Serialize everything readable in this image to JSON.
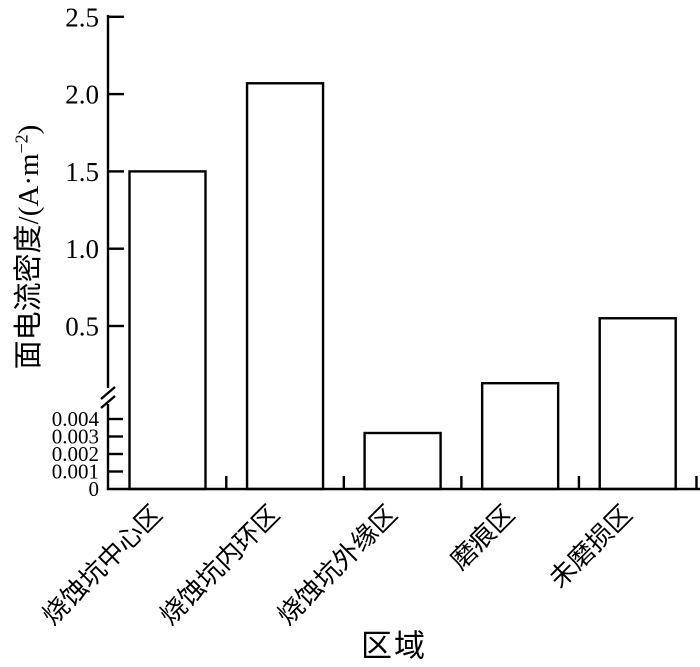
{
  "chart_data": {
    "type": "bar",
    "title": "",
    "xlabel": "区域",
    "ylabel": "面电流密度/(A·m⁻²)",
    "ylabel_parts": {
      "prefix": "面电流密度/(A·m",
      "superscript": "−2",
      "suffix": ")"
    },
    "categories": [
      "烧蚀坑中心区",
      "烧蚀坑内环区",
      "烧蚀坑外缘区",
      "磨痕区",
      "未磨损区"
    ],
    "values": [
      1.5,
      2.07,
      0.0032,
      0.13,
      0.55
    ],
    "ylim": [
      0,
      2.5
    ],
    "axis_break": {
      "between": [
        0.004,
        0.5
      ],
      "style": "double-slash"
    },
    "yaxis": {
      "upper_ticks": [
        {
          "value": 0.5,
          "label": "0.5"
        },
        {
          "value": 1.0,
          "label": "1.0"
        },
        {
          "value": 1.5,
          "label": "1.5"
        },
        {
          "value": 2.0,
          "label": "2.0"
        },
        {
          "value": 2.5,
          "label": "2.5"
        }
      ],
      "lower_ticks": [
        {
          "value": 0,
          "label": "0"
        },
        {
          "value": 0.001,
          "label": "0.001"
        },
        {
          "value": 0.002,
          "label": "0.002"
        },
        {
          "value": 0.003,
          "label": "0.003"
        },
        {
          "value": 0.004,
          "label": "0.004"
        }
      ]
    },
    "grid": false,
    "legend": false,
    "bar_fill": "#ffffff",
    "bar_stroke": "#000000",
    "axis_color": "#000000",
    "background": "#ffffff"
  }
}
